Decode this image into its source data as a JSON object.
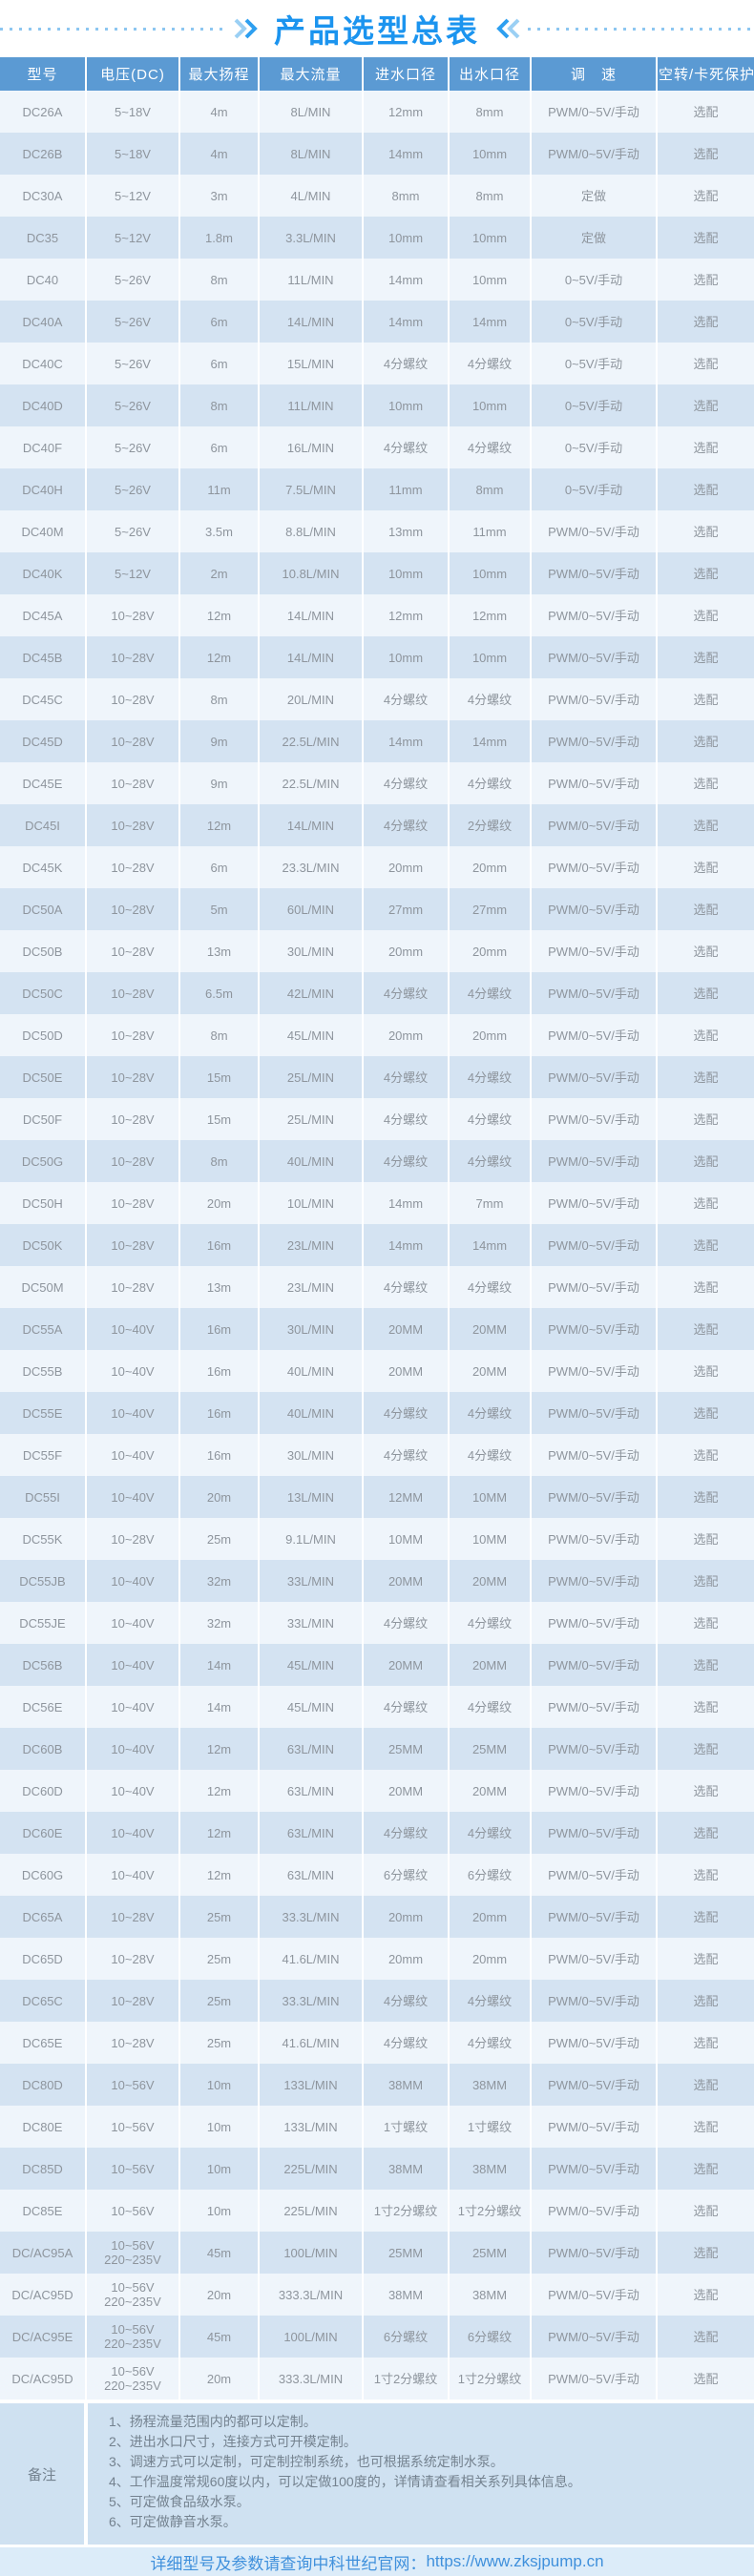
{
  "title": {
    "text": "产品选型总表"
  },
  "decoration": {
    "left_chevron": "double-chevron-right",
    "right_chevron": "double-chevron-left",
    "dotted_line_color": "#8cc6f1"
  },
  "colors": {
    "title_blue": "#1b94ef",
    "header_bar": "#5b9ad3",
    "row_light": "#eff5fb",
    "row_dark": "#d4e3f2",
    "cell_text": "#8e959d",
    "notes_bg": "#cfe1f1",
    "footer_bg": "#dcecf9",
    "footer_text": "#3f90dc"
  },
  "table": {
    "headers": [
      "型号",
      "电压(DC)",
      "最大扬程",
      "最大流量",
      "进水口径",
      "出水口径",
      "调　速",
      "空转/卡死保护"
    ],
    "keys": [
      "model",
      "voltage",
      "max-head",
      "max-flow",
      "inlet-diameter",
      "outlet-diameter",
      "speed-control",
      "protection"
    ],
    "rows": [
      [
        "DC26A",
        "5~18V",
        "4m",
        "8L/MIN",
        "12mm",
        "8mm",
        "PWM/0~5V/手动",
        "选配"
      ],
      [
        "DC26B",
        "5~18V",
        "4m",
        "8L/MIN",
        "14mm",
        "10mm",
        "PWM/0~5V/手动",
        "选配"
      ],
      [
        "DC30A",
        "5~12V",
        "3m",
        "4L/MIN",
        "8mm",
        "8mm",
        "定做",
        "选配"
      ],
      [
        "DC35",
        "5~12V",
        "1.8m",
        "3.3L/MIN",
        "10mm",
        "10mm",
        "定做",
        "选配"
      ],
      [
        "DC40",
        "5~26V",
        "8m",
        "11L/MIN",
        "14mm",
        "10mm",
        "0~5V/手动",
        "选配"
      ],
      [
        "DC40A",
        "5~26V",
        "6m",
        "14L/MIN",
        "14mm",
        "14mm",
        "0~5V/手动",
        "选配"
      ],
      [
        "DC40C",
        "5~26V",
        "6m",
        "15L/MIN",
        "4分螺纹",
        "4分螺纹",
        "0~5V/手动",
        "选配"
      ],
      [
        "DC40D",
        "5~26V",
        "8m",
        "11L/MIN",
        "10mm",
        "10mm",
        "0~5V/手动",
        "选配"
      ],
      [
        "DC40F",
        "5~26V",
        "6m",
        "16L/MIN",
        "4分螺纹",
        "4分螺纹",
        "0~5V/手动",
        "选配"
      ],
      [
        "DC40H",
        "5~26V",
        "11m",
        "7.5L/MIN",
        "11mm",
        "8mm",
        "0~5V/手动",
        "选配"
      ],
      [
        "DC40M",
        "5~26V",
        "3.5m",
        "8.8L/MIN",
        "13mm",
        "11mm",
        "PWM/0~5V/手动",
        "选配"
      ],
      [
        "DC40K",
        "5~12V",
        "2m",
        "10.8L/MIN",
        "10mm",
        "10mm",
        "PWM/0~5V/手动",
        "选配"
      ],
      [
        "DC45A",
        "10~28V",
        "12m",
        "14L/MIN",
        "12mm",
        "12mm",
        "PWM/0~5V/手动",
        "选配"
      ],
      [
        "DC45B",
        "10~28V",
        "12m",
        "14L/MIN",
        "10mm",
        "10mm",
        "PWM/0~5V/手动",
        "选配"
      ],
      [
        "DC45C",
        "10~28V",
        "8m",
        "20L/MIN",
        "4分螺纹",
        "4分螺纹",
        "PWM/0~5V/手动",
        "选配"
      ],
      [
        "DC45D",
        "10~28V",
        "9m",
        "22.5L/MIN",
        "14mm",
        "14mm",
        "PWM/0~5V/手动",
        "选配"
      ],
      [
        "DC45E",
        "10~28V",
        "9m",
        "22.5L/MIN",
        "4分螺纹",
        "4分螺纹",
        "PWM/0~5V/手动",
        "选配"
      ],
      [
        "DC45I",
        "10~28V",
        "12m",
        "14L/MIN",
        "4分螺纹",
        "2分螺纹",
        "PWM/0~5V/手动",
        "选配"
      ],
      [
        "DC45K",
        "10~28V",
        "6m",
        "23.3L/MIN",
        "20mm",
        "20mm",
        "PWM/0~5V/手动",
        "选配"
      ],
      [
        "DC50A",
        "10~28V",
        "5m",
        "60L/MIN",
        "27mm",
        "27mm",
        "PWM/0~5V/手动",
        "选配"
      ],
      [
        "DC50B",
        "10~28V",
        "13m",
        "30L/MIN",
        "20mm",
        "20mm",
        "PWM/0~5V/手动",
        "选配"
      ],
      [
        "DC50C",
        "10~28V",
        "6.5m",
        "42L/MIN",
        "4分螺纹",
        "4分螺纹",
        "PWM/0~5V/手动",
        "选配"
      ],
      [
        "DC50D",
        "10~28V",
        "8m",
        "45L/MIN",
        "20mm",
        "20mm",
        "PWM/0~5V/手动",
        "选配"
      ],
      [
        "DC50E",
        "10~28V",
        "15m",
        "25L/MIN",
        "4分螺纹",
        "4分螺纹",
        "PWM/0~5V/手动",
        "选配"
      ],
      [
        "DC50F",
        "10~28V",
        "15m",
        "25L/MIN",
        "4分螺纹",
        "4分螺纹",
        "PWM/0~5V/手动",
        "选配"
      ],
      [
        "DC50G",
        "10~28V",
        "8m",
        "40L/MIN",
        "4分螺纹",
        "4分螺纹",
        "PWM/0~5V/手动",
        "选配"
      ],
      [
        "DC50H",
        "10~28V",
        "20m",
        "10L/MIN",
        "14mm",
        "7mm",
        "PWM/0~5V/手动",
        "选配"
      ],
      [
        "DC50K",
        "10~28V",
        "16m",
        "23L/MIN",
        "14mm",
        "14mm",
        "PWM/0~5V/手动",
        "选配"
      ],
      [
        "DC50M",
        "10~28V",
        "13m",
        "23L/MIN",
        "4分螺纹",
        "4分螺纹",
        "PWM/0~5V/手动",
        "选配"
      ],
      [
        "DC55A",
        "10~40V",
        "16m",
        "30L/MIN",
        "20MM",
        "20MM",
        "PWM/0~5V/手动",
        "选配"
      ],
      [
        "DC55B",
        "10~40V",
        "16m",
        "40L/MIN",
        "20MM",
        "20MM",
        "PWM/0~5V/手动",
        "选配"
      ],
      [
        "DC55E",
        "10~40V",
        "16m",
        "40L/MIN",
        "4分螺纹",
        "4分螺纹",
        "PWM/0~5V/手动",
        "选配"
      ],
      [
        "DC55F",
        "10~40V",
        "16m",
        "30L/MIN",
        "4分螺纹",
        "4分螺纹",
        "PWM/0~5V/手动",
        "选配"
      ],
      [
        "DC55I",
        "10~40V",
        "20m",
        "13L/MIN",
        "12MM",
        "10MM",
        "PWM/0~5V/手动",
        "选配"
      ],
      [
        "DC55K",
        "10~28V",
        "25m",
        "9.1L/MIN",
        "10MM",
        "10MM",
        "PWM/0~5V/手动",
        "选配"
      ],
      [
        "DC55JB",
        "10~40V",
        "32m",
        "33L/MIN",
        "20MM",
        "20MM",
        "PWM/0~5V/手动",
        "选配"
      ],
      [
        "DC55JE",
        "10~40V",
        "32m",
        "33L/MIN",
        "4分螺纹",
        "4分螺纹",
        "PWM/0~5V/手动",
        "选配"
      ],
      [
        "DC56B",
        "10~40V",
        "14m",
        "45L/MIN",
        "20MM",
        "20MM",
        "PWM/0~5V/手动",
        "选配"
      ],
      [
        "DC56E",
        "10~40V",
        "14m",
        "45L/MIN",
        "4分螺纹",
        "4分螺纹",
        "PWM/0~5V/手动",
        "选配"
      ],
      [
        "DC60B",
        "10~40V",
        "12m",
        "63L/MIN",
        "25MM",
        "25MM",
        "PWM/0~5V/手动",
        "选配"
      ],
      [
        "DC60D",
        "10~40V",
        "12m",
        "63L/MIN",
        "20MM",
        "20MM",
        "PWM/0~5V/手动",
        "选配"
      ],
      [
        "DC60E",
        "10~40V",
        "12m",
        "63L/MIN",
        "4分螺纹",
        "4分螺纹",
        "PWM/0~5V/手动",
        "选配"
      ],
      [
        "DC60G",
        "10~40V",
        "12m",
        "63L/MIN",
        "6分螺纹",
        "6分螺纹",
        "PWM/0~5V/手动",
        "选配"
      ],
      [
        "DC65A",
        "10~28V",
        "25m",
        "33.3L/MIN",
        "20mm",
        "20mm",
        "PWM/0~5V/手动",
        "选配"
      ],
      [
        "DC65D",
        "10~28V",
        "25m",
        "41.6L/MIN",
        "20mm",
        "20mm",
        "PWM/0~5V/手动",
        "选配"
      ],
      [
        "DC65C",
        "10~28V",
        "25m",
        "33.3L/MIN",
        "4分螺纹",
        "4分螺纹",
        "PWM/0~5V/手动",
        "选配"
      ],
      [
        "DC65E",
        "10~28V",
        "25m",
        "41.6L/MIN",
        "4分螺纹",
        "4分螺纹",
        "PWM/0~5V/手动",
        "选配"
      ],
      [
        "DC80D",
        "10~56V",
        "10m",
        "133L/MIN",
        "38MM",
        "38MM",
        "PWM/0~5V/手动",
        "选配"
      ],
      [
        "DC80E",
        "10~56V",
        "10m",
        "133L/MIN",
        "1寸螺纹",
        "1寸螺纹",
        "PWM/0~5V/手动",
        "选配"
      ],
      [
        "DC85D",
        "10~56V",
        "10m",
        "225L/MIN",
        "38MM",
        "38MM",
        "PWM/0~5V/手动",
        "选配"
      ],
      [
        "DC85E",
        "10~56V",
        "10m",
        "225L/MIN",
        "1寸2分螺纹",
        "1寸2分螺纹",
        "PWM/0~5V/手动",
        "选配"
      ],
      [
        "DC/AC95A",
        "10~56V\n220~235V",
        "45m",
        "100L/MIN",
        "25MM",
        "25MM",
        "PWM/0~5V/手动",
        "选配"
      ],
      [
        "DC/AC95D",
        "10~56V\n220~235V",
        "20m",
        "333.3L/MIN",
        "38MM",
        "38MM",
        "PWM/0~5V/手动",
        "选配"
      ],
      [
        "DC/AC95E",
        "10~56V\n220~235V",
        "45m",
        "100L/MIN",
        "6分螺纹",
        "6分螺纹",
        "PWM/0~5V/手动",
        "选配"
      ],
      [
        "DC/AC95D",
        "10~56V\n220~235V",
        "20m",
        "333.3L/MIN",
        "1寸2分螺纹",
        "1寸2分螺纹",
        "PWM/0~5V/手动",
        "选配"
      ]
    ]
  },
  "notes": {
    "label": "备注",
    "items": [
      "1、扬程流量范围内的都可以定制。",
      "2、进出水口尺寸，连接方式可开模定制。",
      "3、调速方式可以定制，可定制控制系统，也可根据系统定制水泵。",
      "4、工作温度常规60度以内，可以定做100度的，详情请查看相关系列具体信息。",
      "5、可定做食品级水泵。",
      "6、可定做静音水泵。"
    ]
  },
  "footer": {
    "label": "详细型号及参数请查询中科世纪官网：",
    "url": "https://www.zksjpump.cn"
  }
}
